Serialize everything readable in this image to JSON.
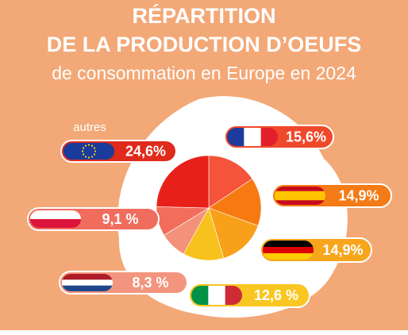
{
  "chart_data": {
    "type": "pie",
    "title": [
      "RÉPARTITION",
      "DE LA PRODUCTION D’OEUFS"
    ],
    "subtitle": "de consommation en Europe en 2024",
    "categories": [
      null,
      null,
      null,
      null,
      null,
      null,
      "autres"
    ],
    "values": [
      15.6,
      14.9,
      14.9,
      12.6,
      8.3,
      9.1,
      24.6
    ],
    "value_labels": [
      "15,6%",
      "14,9%",
      "14,9%",
      "12,6 %",
      "8,3 %",
      "9,1 %",
      "24,6%"
    ],
    "colors": [
      "#f5533a",
      "#f77a10",
      "#f9a01a",
      "#f7c21d",
      "#f4917a",
      "#f26d5c",
      "#e8201a"
    ]
  }
}
